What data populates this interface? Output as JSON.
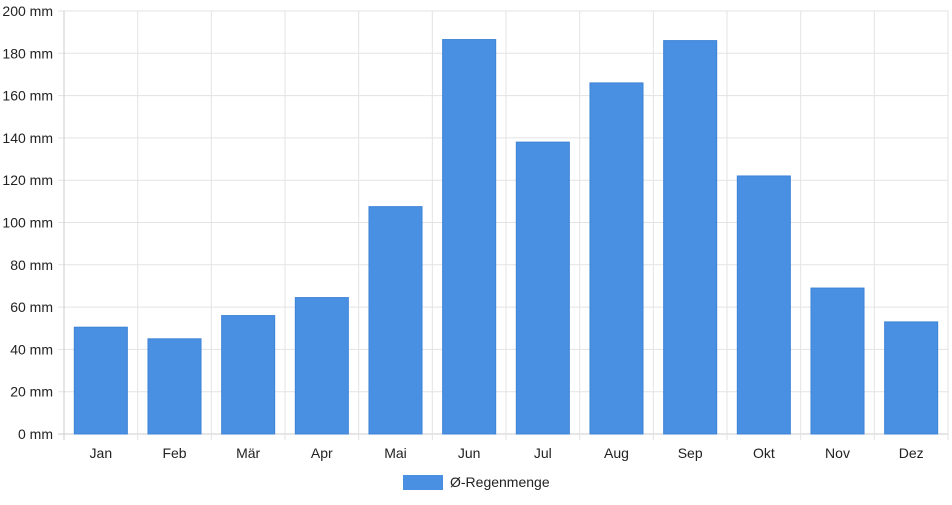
{
  "chart_data": {
    "type": "bar",
    "categories": [
      "Jan",
      "Feb",
      "Mär",
      "Apr",
      "Mai",
      "Jun",
      "Jul",
      "Aug",
      "Sep",
      "Okt",
      "Nov",
      "Dez"
    ],
    "series": [
      {
        "name": "Ø-Regenmenge",
        "values": [
          50.5,
          45,
          56,
          64.5,
          107.5,
          186.5,
          138,
          166,
          186,
          122,
          69,
          53
        ]
      }
    ],
    "y_ticks": [
      "0 mm",
      "20 mm",
      "40 mm",
      "60 mm",
      "80 mm",
      "100 mm",
      "120 mm",
      "140 mm",
      "160 mm",
      "180 mm",
      "200 mm"
    ],
    "ylim": [
      0,
      200
    ],
    "unit": "mm",
    "grid": true,
    "legend_position": "bottom-center",
    "colors": {
      "bar": "#4a90e2",
      "grid": "#e3e3e3",
      "axis": "#cccccc"
    }
  }
}
